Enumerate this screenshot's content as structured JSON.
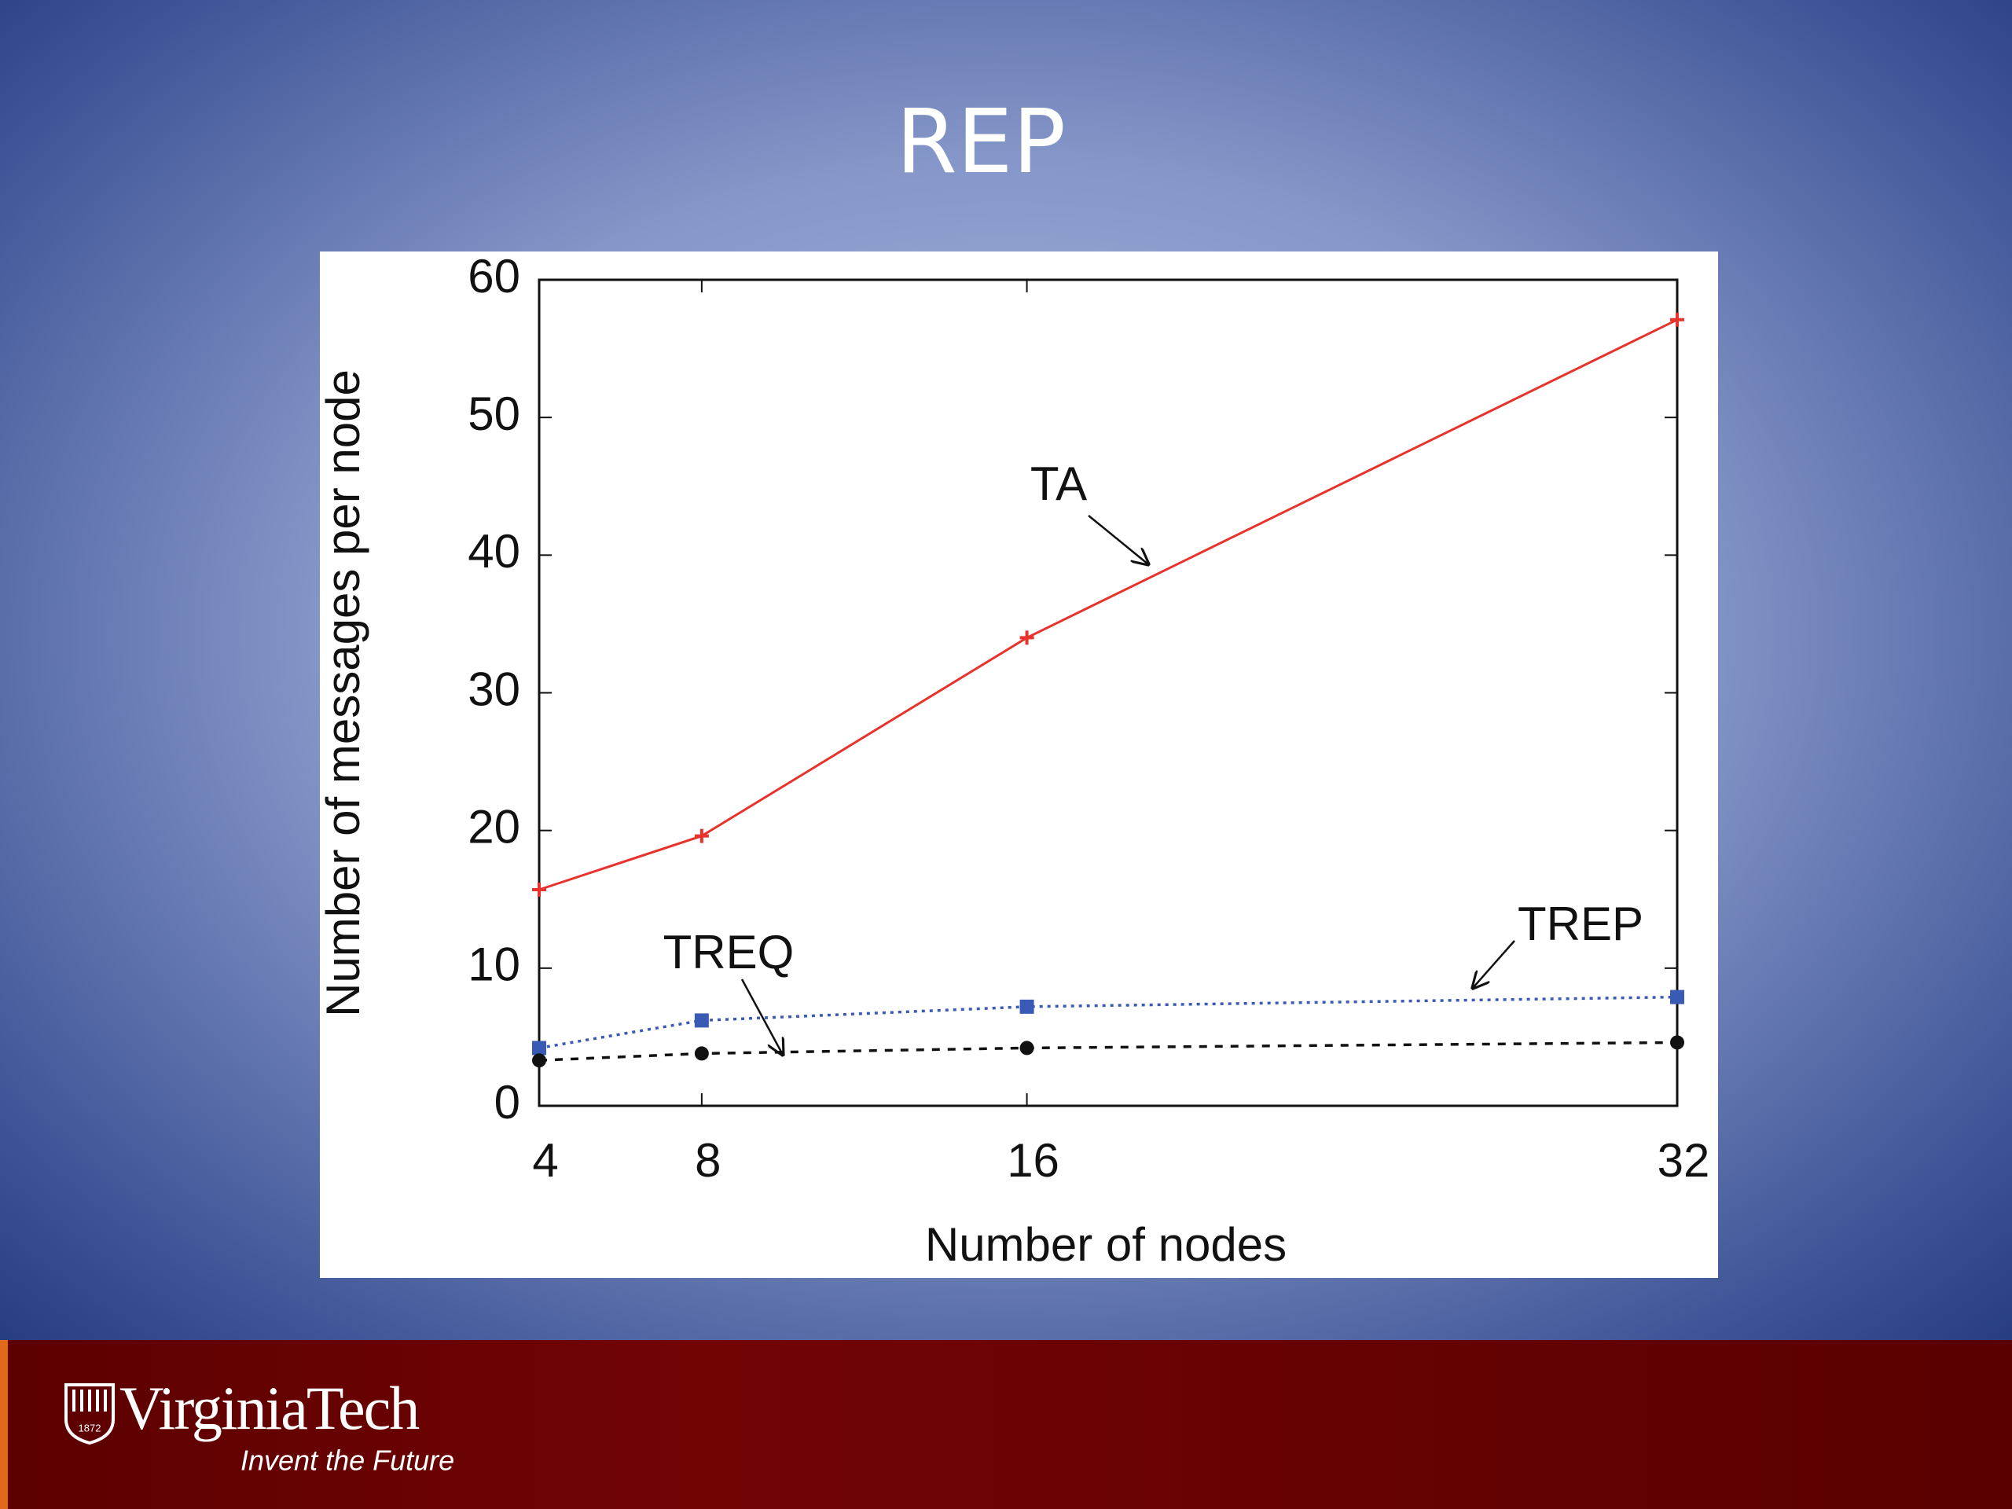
{
  "slide": {
    "title": "REP"
  },
  "chart_data": {
    "type": "line",
    "x_label": "Number of nodes",
    "y_label": "Number of messages per node",
    "x": [
      4,
      8,
      16,
      32
    ],
    "xlim": [
      4,
      32
    ],
    "xticks": [
      4,
      8,
      16,
      32
    ],
    "ylim": [
      0,
      60
    ],
    "yticks": [
      0,
      10,
      20,
      30,
      40,
      50,
      60
    ],
    "series": [
      {
        "name": "TA",
        "color": "#e8322c",
        "style": "solid",
        "marker": "cross",
        "values": [
          15.7,
          19.6,
          34.0,
          57.1
        ]
      },
      {
        "name": "TREP",
        "color": "#3a5bb5",
        "style": "dotted",
        "marker": "square",
        "values": [
          4.2,
          6.2,
          7.2,
          7.9
        ]
      },
      {
        "name": "TREQ",
        "color": "#111111",
        "style": "dashed",
        "marker": "circle",
        "values": [
          3.3,
          3.8,
          4.2,
          4.6
        ]
      }
    ]
  },
  "footer": {
    "brand": "VirginiaTech",
    "tagline": "Invent the Future",
    "year": "1872"
  }
}
